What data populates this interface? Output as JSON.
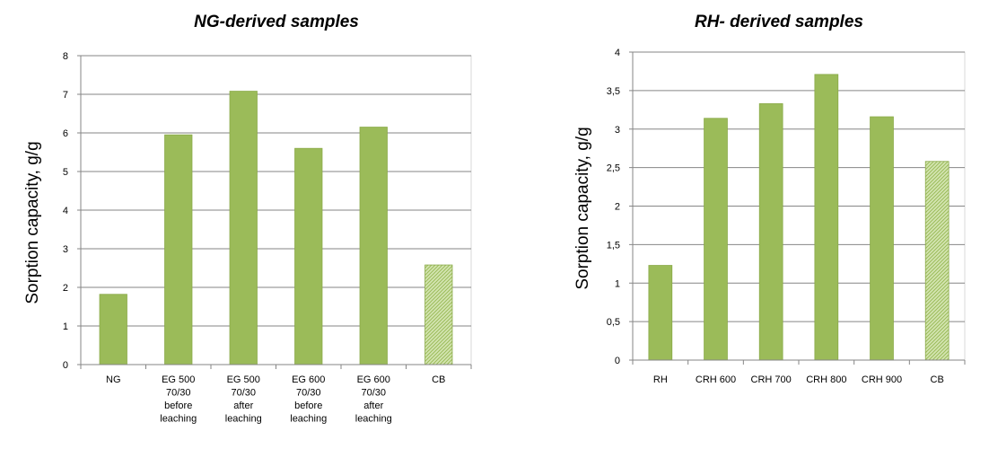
{
  "colors": {
    "bar": "#9bbb59",
    "bar_edge": "#8aaa48",
    "hatch_light": "#d4e5b2",
    "grid": "#868686",
    "axis": "#868686"
  },
  "chart_data": [
    {
      "type": "bar",
      "title": "NG-derived samples",
      "xlabel": "",
      "ylabel": "Sorption capacity, g/g",
      "ylim": [
        0,
        8
      ],
      "yticks": [
        "0",
        "1",
        "2",
        "3",
        "4",
        "5",
        "6",
        "7",
        "8"
      ],
      "grid": true,
      "categories": [
        [
          "NG"
        ],
        [
          "EG 500",
          "70/30",
          "before",
          "leaching"
        ],
        [
          "EG 500",
          "70/30",
          "after",
          "leaching"
        ],
        [
          "EG 600",
          "70/30",
          "before",
          "leaching"
        ],
        [
          "EG 600",
          "70/30",
          "after",
          "leaching"
        ],
        [
          "CB"
        ]
      ],
      "values": [
        1.82,
        5.95,
        7.08,
        5.6,
        6.15,
        2.58
      ],
      "hatched": [
        false,
        false,
        false,
        false,
        false,
        true
      ]
    },
    {
      "type": "bar",
      "title": "RH- derived samples",
      "xlabel": "",
      "ylabel": "Sorption capacity, g/g",
      "ylim": [
        0,
        4
      ],
      "yticks": [
        "0",
        "0,5",
        "1",
        "1,5",
        "2",
        "2,5",
        "3",
        "3,5",
        "4"
      ],
      "grid": true,
      "categories": [
        [
          "RH"
        ],
        [
          "CRH 600"
        ],
        [
          "CRH 700"
        ],
        [
          "CRH 800"
        ],
        [
          "CRH 900"
        ],
        [
          "CB"
        ]
      ],
      "values": [
        1.23,
        3.14,
        3.33,
        3.71,
        3.16,
        2.58
      ],
      "hatched": [
        false,
        false,
        false,
        false,
        false,
        true
      ]
    }
  ]
}
